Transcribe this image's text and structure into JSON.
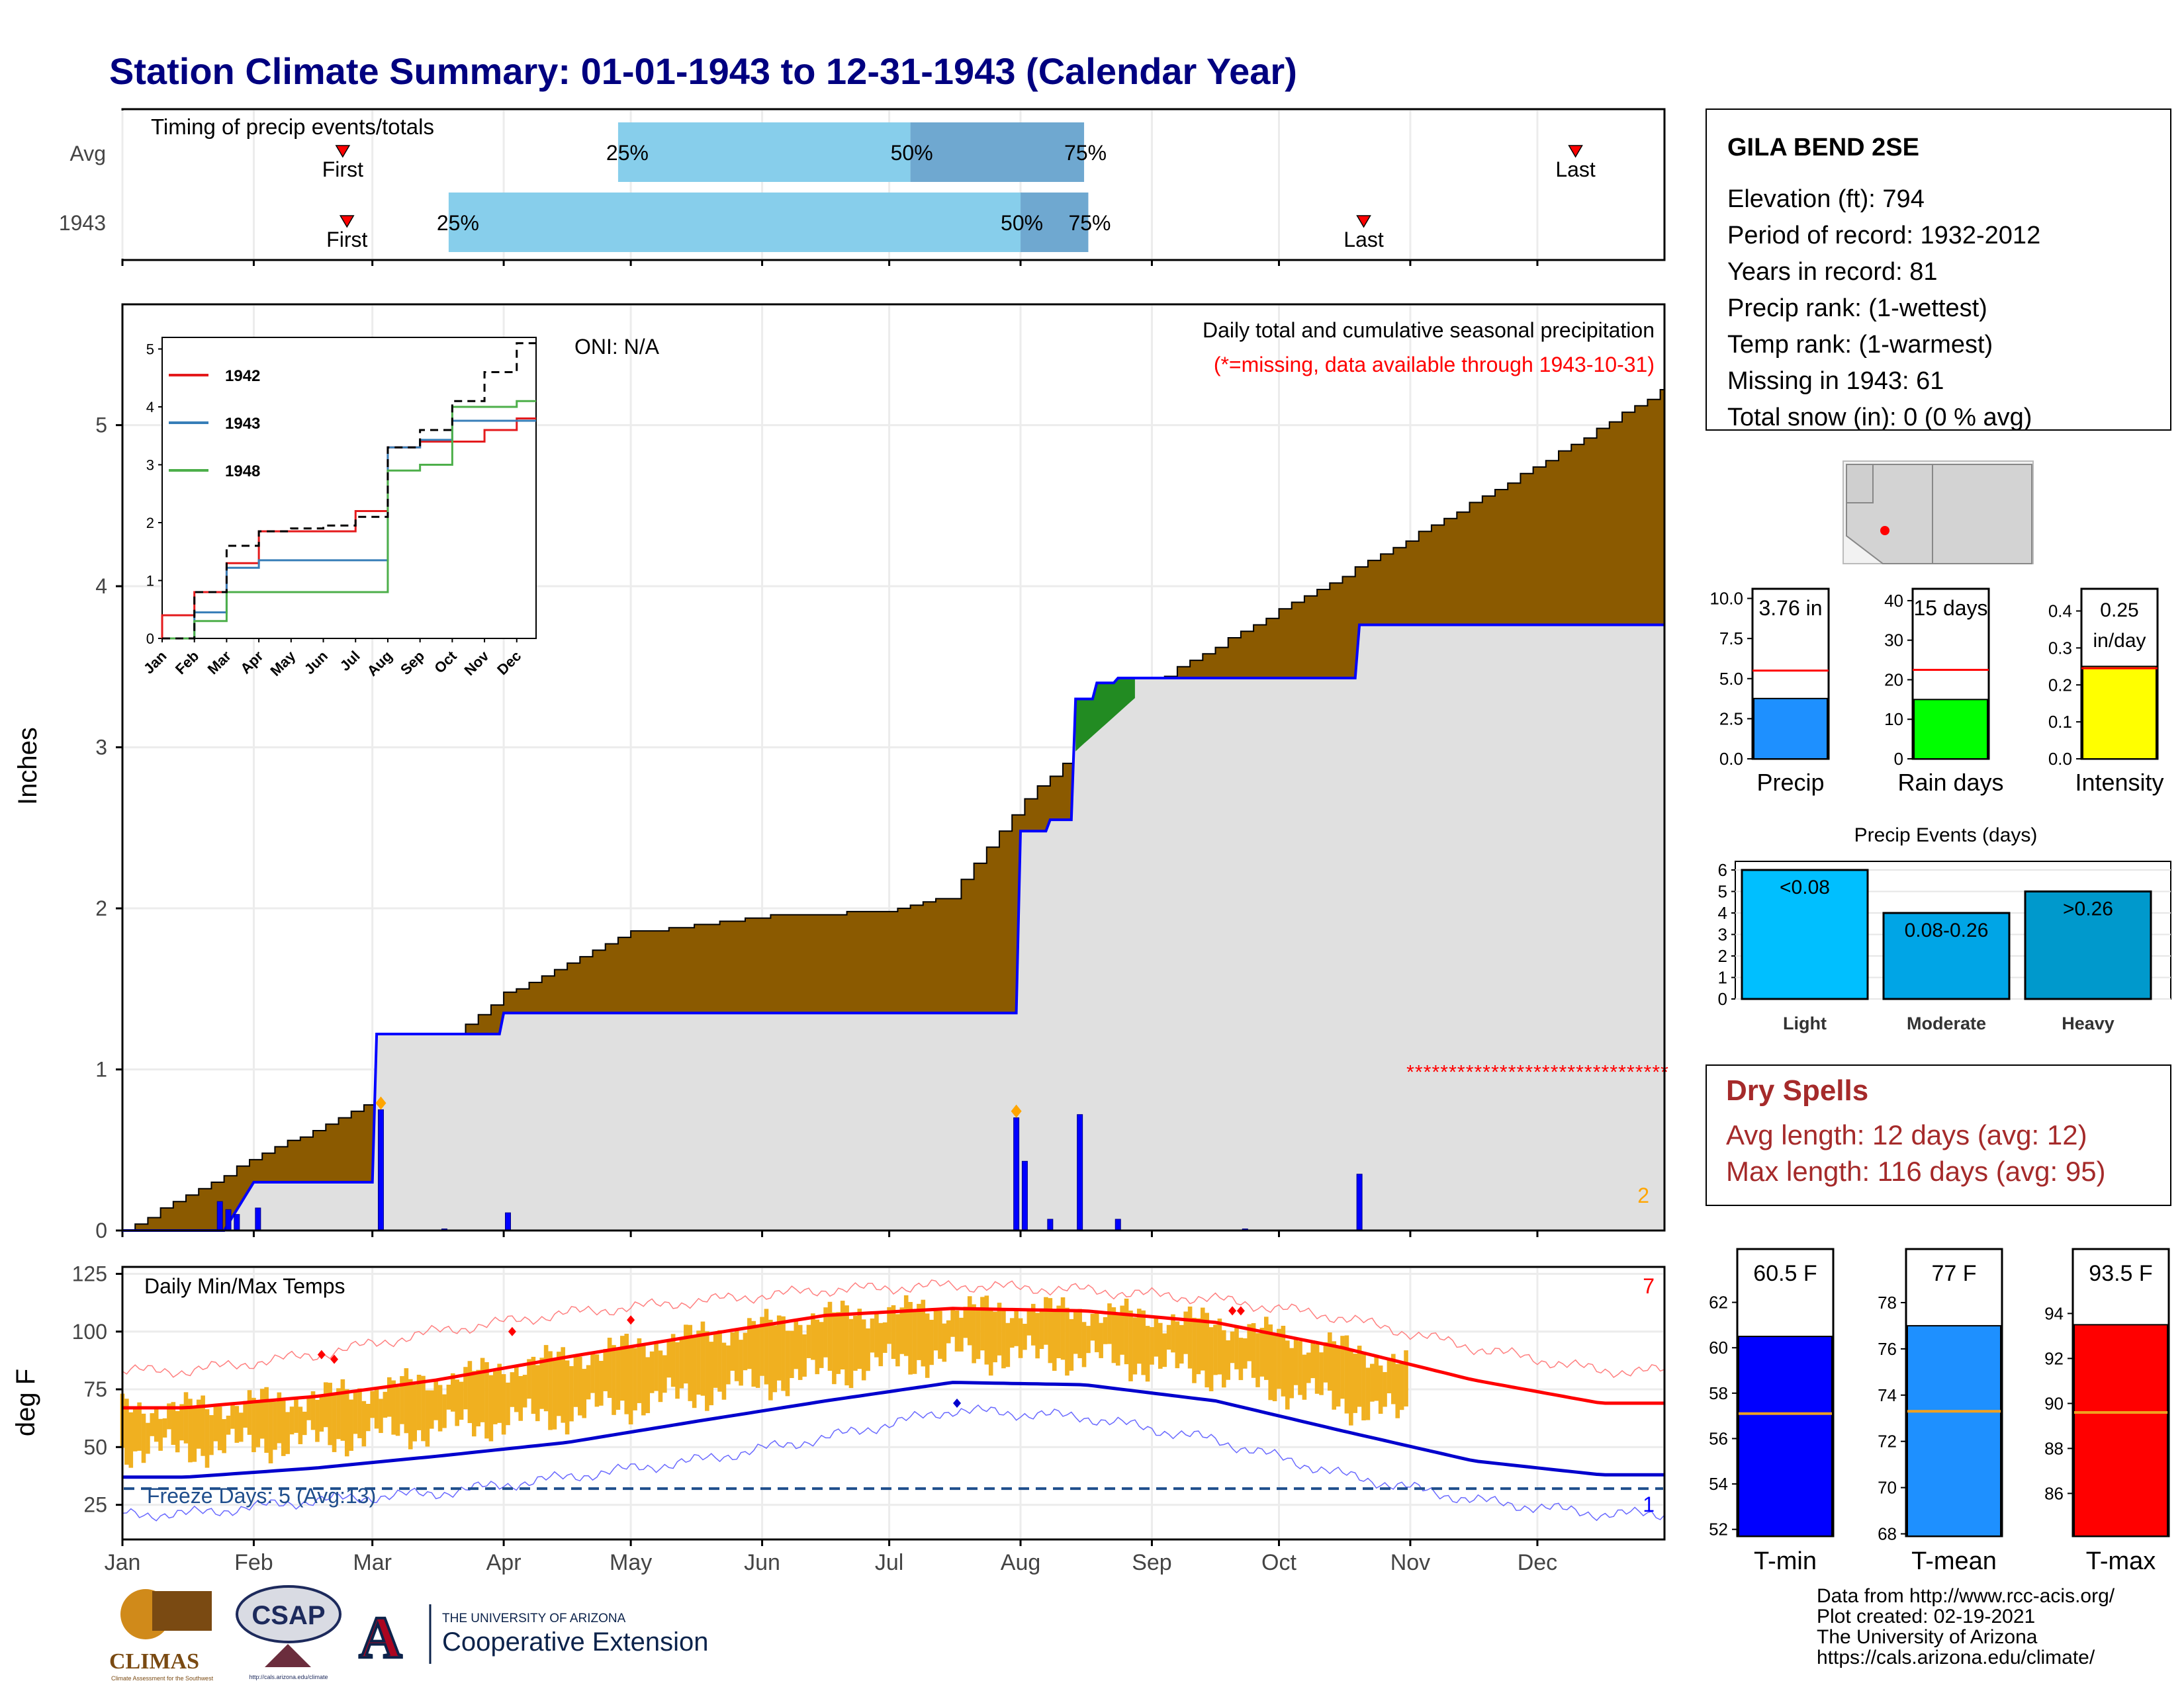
{
  "title": "Station Climate Summary: 01-01-1943 to 12-31-1943 (Calendar Year)",
  "timing": {
    "title": "Timing of precip events/totals",
    "rows": [
      "Avg",
      "1943"
    ],
    "first_label": "First",
    "last_label": "Last",
    "avg": {
      "first": "02-22",
      "p25": "04-28",
      "p50": "07-06",
      "p75": "08-16",
      "last": "12-10"
    },
    "y1943": {
      "first": "02-23",
      "p25": "03-19",
      "p50": "08-01",
      "p75": "08-17",
      "last": "10-21"
    },
    "pct_labels": [
      "25%",
      "50%",
      "75%"
    ]
  },
  "main": {
    "ylabel": "Inches",
    "title": "Daily total and cumulative seasonal precipitation",
    "missing_note": "(*=missing, data available through 1943-10-31)",
    "oni": "ONI: N/A",
    "corner_number": "2",
    "months": [
      "Jan",
      "Feb",
      "Mar",
      "Apr",
      "May",
      "Jun",
      "Jul",
      "Aug",
      "Sep",
      "Oct",
      "Nov",
      "Dec"
    ],
    "yticks": [
      "0",
      "1",
      "2",
      "3",
      "4",
      "5"
    ]
  },
  "inset": {
    "yticks": [
      "0",
      "1",
      "2",
      "3",
      "4",
      "5"
    ],
    "months": [
      "Jan",
      "Feb",
      "Mar",
      "Apr",
      "May",
      "Jun",
      "Jul",
      "Aug",
      "Sep",
      "Oct",
      "Nov",
      "Dec"
    ],
    "legend": [
      {
        "name": "1942",
        "color": "#e41a1c"
      },
      {
        "name": "1943",
        "color": "#377eb8"
      },
      {
        "name": "1948",
        "color": "#4daf4a"
      }
    ]
  },
  "temps": {
    "title": "Daily Min/Max Temps",
    "ylabel": "deg F",
    "yticks": [
      "25",
      "50",
      "75",
      "100",
      "125"
    ],
    "freeze_label": "Freeze Days: 5 (Avg:13)",
    "corner_top": "7",
    "corner_bottom": "1"
  },
  "station": {
    "name": "GILA BEND 2SE",
    "lines": [
      "Elevation (ft): 794",
      "Period of record: 1932-2012",
      "Years in record: 81",
      "Precip rank:  (1-wettest)",
      "Temp rank:  (1-warmest)",
      "Missing in 1943: 61",
      "Total snow (in): 0 (0 % avg)"
    ]
  },
  "mini_bars": [
    {
      "label": "Precip",
      "value_text": "3.76 in",
      "value": 3.76,
      "avg": 5.5,
      "max": 10.6,
      "ticks": [
        "0.0",
        "2.5",
        "5.0",
        "7.5",
        "10.0"
      ],
      "color": "#1e90ff"
    },
    {
      "label": "Rain days",
      "value_text": "15 days",
      "value": 15,
      "avg": 22.5,
      "max": 43,
      "ticks": [
        "0",
        "10",
        "20",
        "30",
        "40"
      ],
      "color": "#00ff00"
    },
    {
      "label": "Intensity",
      "value_text": "0.25 in/day",
      "value_line1": "0.25",
      "value_line2": "in/day",
      "value": 0.25,
      "avg": 0.245,
      "max": 0.46,
      "ticks": [
        "0.0",
        "0.1",
        "0.2",
        "0.3",
        "0.4"
      ],
      "color": "#ffff00"
    }
  ],
  "events": {
    "title": "Precip Events (days)",
    "yticks": [
      "0",
      "1",
      "2",
      "3",
      "4",
      "5",
      "6"
    ],
    "bars": [
      {
        "category": "Light",
        "label": "<0.08",
        "value": 6,
        "color": "#00bfff"
      },
      {
        "category": "Moderate",
        "label": "0.08-0.26",
        "value": 4,
        "color": "#00a5e6"
      },
      {
        "category": "Heavy",
        "label": ">0.26",
        "value": 5,
        "color": "#0099cc"
      }
    ]
  },
  "dry_spells": {
    "title": "Dry Spells",
    "avg": "Avg length: 12 days (avg: 12)",
    "max": "Max length: 116 days (avg: 95)"
  },
  "temp_bars": [
    {
      "label": "T-min",
      "value_text": "60.5 F",
      "value": 60.5,
      "avg": 57.1,
      "min": 51.7,
      "max": 62.6,
      "ticks": [
        "52",
        "54",
        "56",
        "58",
        "60",
        "62"
      ],
      "color": "#0000ff"
    },
    {
      "label": "T-mean",
      "value_text": "77 F",
      "value": 77.0,
      "avg": 73.3,
      "min": 67.9,
      "max": 78.6,
      "ticks": [
        "68",
        "70",
        "72",
        "74",
        "76",
        "78"
      ],
      "color": "#1e90ff"
    },
    {
      "label": "T-max",
      "value_text": "93.5 F",
      "value": 93.5,
      "avg": 89.6,
      "min": 84.1,
      "max": 95.1,
      "ticks": [
        "86",
        "88",
        "90",
        "92",
        "94"
      ],
      "color": "#ff0000"
    }
  ],
  "footer": {
    "lines": [
      "Data from http://www.rcc-acis.org/",
      "Plot created: 02-19-2021",
      "The University of Arizona",
      "https://cals.arizona.edu/climate/"
    ],
    "logos": {
      "climas": "CLIMAS",
      "climas_sub": "Climate Assessment for the Southwest",
      "csap": "CSAP",
      "csap_url": "http://cals.arizona.edu/climate",
      "ua_small": "THE UNIVERSITY OF ARIZONA",
      "ua_big": "Cooperative Extension"
    }
  },
  "chart_data": [
    {
      "type": "area",
      "title": "Daily total and cumulative seasonal precipitation",
      "xlabel": "",
      "ylabel": "Inches",
      "ylim": [
        0,
        5.75
      ],
      "x_axis": "day of year 1943",
      "series": [
        {
          "name": "",
          "description_color": "brown",
          "x": [
            "01-01",
            "02-01",
            "03-01",
            "04-01",
            "05-01",
            "06-01",
            "07-01",
            "07-15",
            "08-01",
            "08-15",
            "09-01",
            "10-01",
            "11-01",
            "12-01",
            "12-31"
          ],
          "values": [
            0.0,
            0.45,
            0.8,
            1.47,
            1.85,
            1.95,
            1.98,
            2.07,
            2.65,
            3.0,
            3.4,
            3.85,
            4.3,
            4.75,
            5.23
          ]
        },
        {
          "name": "1943",
          "x": [
            "01-01",
            "01-25",
            "02-01",
            "03-02",
            "03-02",
            "04-01",
            "04-01",
            "08-01",
            "08-01",
            "08-08",
            "08-14",
            "08-14",
            "08-19",
            "08-19",
            "08-24",
            "08-24",
            "10-20",
            "10-20",
            "12-31"
          ],
          "values": [
            0.0,
            0.0,
            0.3,
            0.45,
            1.22,
            1.22,
            1.35,
            1.35,
            2.48,
            2.55,
            2.6,
            3.3,
            3.3,
            3.4,
            3.4,
            3.43,
            3.43,
            3.76,
            3.76
          ]
        }
      ],
      "daily_bars": [
        {
          "x": "01-24",
          "value": 0.18
        },
        {
          "x": "01-26",
          "value": 0.13
        },
        {
          "x": "01-28",
          "value": 0.1
        },
        {
          "x": "02-02",
          "value": 0.14
        },
        {
          "x": "03-03",
          "value": 0.75
        },
        {
          "x": "03-18",
          "value": 0.01
        },
        {
          "x": "04-02",
          "value": 0.11
        },
        {
          "x": "07-31",
          "value": 0.7
        },
        {
          "x": "08-02",
          "value": 0.43
        },
        {
          "x": "08-08",
          "value": 0.07
        },
        {
          "x": "08-15",
          "value": 0.72
        },
        {
          "x": "08-24",
          "value": 0.07
        },
        {
          "x": "09-23",
          "value": 0.01
        },
        {
          "x": "10-20",
          "value": 0.35
        }
      ],
      "missing_from": "11-01",
      "missing_y": 1.0
    },
    {
      "type": "line",
      "title": "",
      "xlabel": "",
      "ylabel": "",
      "ylim": [
        0,
        5.2
      ],
      "categories": [
        "Jan",
        "Feb",
        "Mar",
        "Apr",
        "May",
        "Jun",
        "Jul",
        "Aug",
        "Sep",
        "Oct",
        "Nov",
        "Dec"
      ],
      "series": [
        {
          "name": "1942",
          "values": [
            0.4,
            0.8,
            1.3,
            1.85,
            1.85,
            1.85,
            2.2,
            3.3,
            3.4,
            3.4,
            3.6,
            3.8
          ]
        },
        {
          "name": "1943",
          "values": [
            0.0,
            0.45,
            1.22,
            1.35,
            1.35,
            1.35,
            1.35,
            3.3,
            3.43,
            3.76,
            3.76,
            3.76
          ]
        },
        {
          "name": "1948",
          "values": [
            0.0,
            0.3,
            0.8,
            0.8,
            0.8,
            0.8,
            0.8,
            2.9,
            3.0,
            4.0,
            4.0,
            4.1
          ]
        },
        {
          "name": "",
          "values": [
            0.0,
            0.8,
            1.6,
            1.85,
            1.9,
            1.95,
            2.1,
            3.3,
            3.6,
            4.1,
            4.6,
            5.1
          ]
        }
      ]
    },
    {
      "type": "bar",
      "title": "Daily Min/Max Temps",
      "ylabel": "deg F",
      "ylim": [
        10,
        128
      ],
      "normal_max": [
        67,
        72,
        79,
        89,
        98,
        107,
        110,
        109,
        104,
        93,
        79,
        69
      ],
      "normal_min": [
        37,
        41,
        46,
        52,
        61,
        70,
        78,
        77,
        70,
        57,
        44,
        38
      ],
      "record_max": [
        83,
        90,
        100,
        108,
        113,
        118,
        120,
        118,
        114,
        106,
        93,
        83
      ],
      "record_min": [
        21,
        27,
        30,
        37,
        44,
        54,
        66,
        63,
        53,
        38,
        27,
        21
      ],
      "freeze_line": 32,
      "data_through": "10-31"
    }
  ]
}
